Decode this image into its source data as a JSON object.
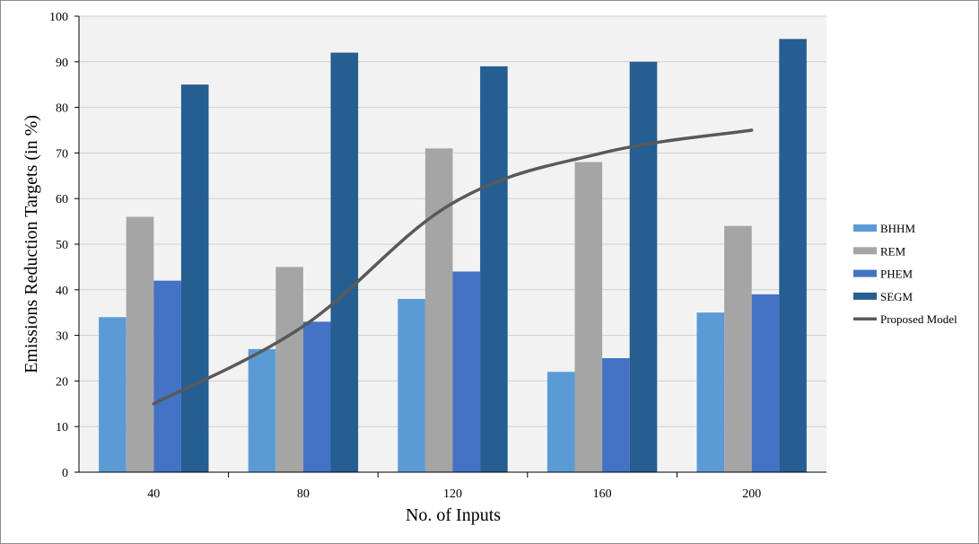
{
  "chart_data": {
    "type": "bar",
    "xlabel": "No. of Inputs",
    "ylabel": "Emissions Reduction Targets (in %)",
    "categories": [
      "40",
      "80",
      "120",
      "160",
      "200"
    ],
    "ylim": [
      0,
      100
    ],
    "yticks": [
      "0",
      "10",
      "20",
      "30",
      "40",
      "50",
      "60",
      "70",
      "80",
      "90",
      "100"
    ],
    "grid": true,
    "legend_position": "right",
    "series": [
      {
        "name": "BHHM",
        "kind": "bar",
        "color": "#5b9bd5",
        "values": [
          34,
          27,
          38,
          22,
          35
        ]
      },
      {
        "name": "REM",
        "kind": "bar",
        "color": "#a5a5a5",
        "values": [
          56,
          45,
          71,
          68,
          54
        ]
      },
      {
        "name": "PHEM",
        "kind": "bar",
        "color": "#4472c4",
        "values": [
          42,
          33,
          44,
          25,
          39
        ]
      },
      {
        "name": "SEGM",
        "kind": "bar",
        "color": "#255e91",
        "values": [
          85,
          92,
          89,
          90,
          95
        ]
      },
      {
        "name": "Proposed Model",
        "kind": "line",
        "color": "#595959",
        "values": [
          15,
          32,
          59,
          70,
          75
        ]
      }
    ]
  }
}
